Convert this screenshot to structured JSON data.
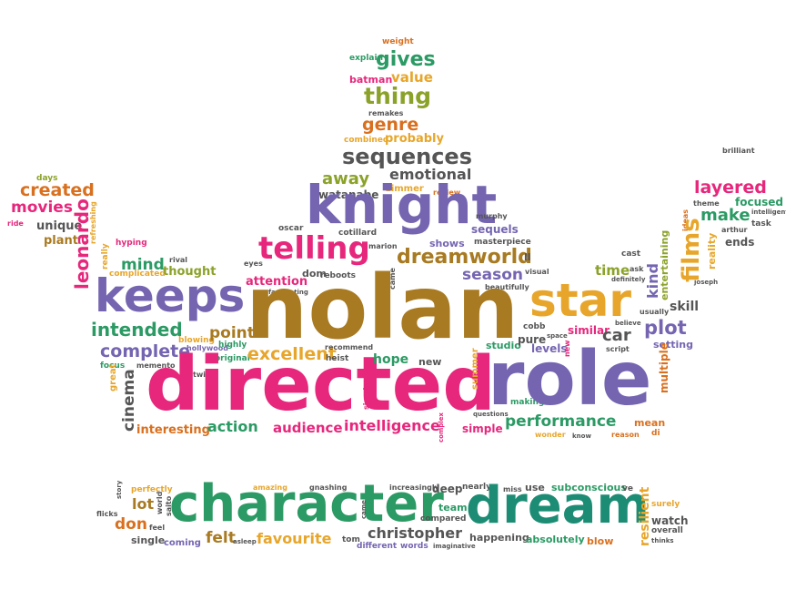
{
  "palette": {
    "purple": "#7565b1",
    "pink": "#e6277c",
    "gold": "#a87a22",
    "yellow": "#e7a62b",
    "green": "#2b9a64",
    "teal": "#1d8c74",
    "orange": "#d9701f",
    "lime": "#8ba22a",
    "gray": "#555555"
  },
  "words": {
    "nolan": "nolan",
    "directed": "directed",
    "role": "role",
    "character": "character",
    "dream": "dream",
    "knight": "knight",
    "keeps": "keeps",
    "star": "star",
    "telling": "telling",
    "sequences": "sequences",
    "dreamworld": "dreamworld",
    "thing": "thing",
    "gives": "gives",
    "genre": "genre",
    "emotional": "emotional",
    "away": "away",
    "intended": "intended",
    "complete": "complete",
    "excellent": "excellent",
    "plot": "plot",
    "performance": "performance",
    "intelligence": "intelligence",
    "audience": "audience",
    "action": "action",
    "christopher": "christopher",
    "favourite": "favourite",
    "felt": "felt",
    "lot": "lot",
    "don": "don",
    "layered": "layered",
    "make": "make",
    "focused": "focused",
    "films": "films",
    "created": "created",
    "movies": "movies",
    "leonardo": "leonardo",
    "season": "season",
    "sequels": "sequels",
    "kind": "kind",
    "time": "time",
    "skill": "skill",
    "similar": "similar",
    "car": "car",
    "setting": "setting",
    "mind": "mind",
    "thought": "thought",
    "attention": "attention",
    "point": "point",
    "hope": "hope",
    "watanabe": "watanabe",
    "shows": "shows",
    "probably": "probably",
    "value": "value",
    "batman": "batman",
    "explain": "explain",
    "weight": "weight",
    "remakes": "remakes",
    "combined": "combined",
    "zimmer": "zimmer",
    "review": "review",
    "unique": "unique",
    "plant": "plant",
    "days": "days",
    "ride": "ride",
    "refreshing": "refreshing",
    "really": "really",
    "hyping": "hyping",
    "rival": "rival",
    "complicated": "complicated",
    "oscar": "oscar",
    "cotillard": "cotillard",
    "marion": "marion",
    "eyes": "eyes",
    "dom": "dom",
    "reboots": "reboots",
    "masterpiece": "masterpiece",
    "murphy": "murphy",
    "ll": "ll",
    "visual": "visual",
    "beautifully": "beautifully",
    "cobb": "cobb",
    "space": "space",
    "believe": "believe",
    "usually": "usually",
    "definitely": "definitely",
    "entertaining": "entertaining",
    "reality": "reality",
    "ask": "ask",
    "cast": "cast",
    "ideas": "ideas",
    "arthur": "arthur",
    "joseph": "joseph",
    "ends": "ends",
    "task": "task",
    "intelligent": "intelligent",
    "theme": "theme",
    "brilliant": "brilliant",
    "memento": "memento",
    "blowing": "blowing",
    "hollywood": "hollywood",
    "highly": "highly",
    "original": "original",
    "heist": "heist",
    "recommend": "recommend",
    "summer": "summer",
    "studio": "studio",
    "pure": "pure",
    "levels": "levels",
    "new": "new",
    "script": "script",
    "multiple": "multiple",
    "mean": "mean",
    "di": "di",
    "reason": "reason",
    "wonder": "wonder",
    "know": "know",
    "simple": "simple",
    "making": "making",
    "questions": "questions",
    "simply": "simply",
    "complex": "complex",
    "cinema": "cinema",
    "great": "great",
    "twists": "twists",
    "interesting": "interesting",
    "fascinating": "fascinating",
    "focus": "focus",
    "perfectly": "perfectly",
    "story": "story",
    "saito": "saito",
    "world": "world",
    "flicks": "flicks",
    "feel": "feel",
    "single": "single",
    "coming": "coming",
    "asleep": "asleep",
    "amazing": "amazing",
    "gnashing": "gnashing",
    "came": "came",
    "tom": "tom",
    "different": "different",
    "words": "words",
    "imaginative": "imaginative",
    "increasingly": "increasingly",
    "deep": "deep",
    "team": "team",
    "compared": "compared",
    "nearly": "nearly",
    "happening": "happening",
    "miss": "miss",
    "use": "use",
    "absolutely": "absolutely",
    "subconscious": "subconscious",
    "ve": "ve",
    "blow": "blow",
    "resilient": "resilient",
    "surely": "surely",
    "watch": "watch",
    "overall": "overall",
    "thinks": "thinks"
  }
}
